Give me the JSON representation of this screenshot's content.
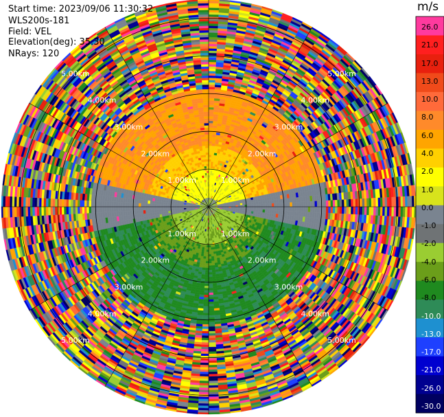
{
  "header": {
    "start_time": "Start time: 2023/09/06 11:30:32",
    "instrument": "WLS200s-181",
    "field": "Field: VEL",
    "elevation": "Elevation(deg): 35.30",
    "nrays": "NRays: 120"
  },
  "chart_data": {
    "type": "heatmap",
    "subtype": "PPI polar scan",
    "field": "VEL",
    "unit": "m/s",
    "nrays": 120,
    "elevation_deg": 35.3,
    "range_rings_km": [
      1.0,
      2.0,
      3.0,
      4.0,
      5.0
    ],
    "range_labels": [
      "1.00km",
      "2.00km",
      "3.00km",
      "4.00km",
      "5.00km"
    ],
    "max_range_km": 5.5,
    "colorbar": {
      "title": "m/s",
      "levels": [
        26.0,
        21.0,
        17.0,
        13.0,
        10.0,
        8.0,
        6.0,
        4.0,
        2.0,
        1.0,
        0.0,
        -1.0,
        -2.0,
        -4.0,
        -6.0,
        -8.0,
        -10.0,
        -13.0,
        -17.0,
        -21.0,
        -26.0,
        -30.0
      ],
      "tick_labels": [
        "26.0",
        "21.0",
        "17.0",
        "13.0",
        "10.0",
        "8.0",
        "6.0",
        "4.0",
        "2.0",
        "1.0",
        "0.0",
        "-1.0",
        "-2.0",
        "-4.0",
        "-6.0",
        "-8.0",
        "-10.0",
        "-13.0",
        "-17.0",
        "-21.0",
        "-26.0",
        "-30.0"
      ],
      "bin_colors": [
        "#ff3a9e",
        "#ff1f1f",
        "#e8200e",
        "#f04a1a",
        "#ff6a3a",
        "#ff8a2a",
        "#ffa500",
        "#ffd000",
        "#ffff00",
        "#d8e31c",
        "#7a8490",
        "#6f7375",
        "#9acd32",
        "#6b9e1a",
        "#1f8a1f",
        "#2e8b57",
        "#1e90d0",
        "#1e40ff",
        "#0000d0",
        "#000090",
        "#000060"
      ]
    },
    "description": "Near-range region: positive velocities (yellow/orange) to the north, negative (green) to the south, near-zero (gray) along east-west axis; beyond ~3km noisy multi-colored returns."
  }
}
